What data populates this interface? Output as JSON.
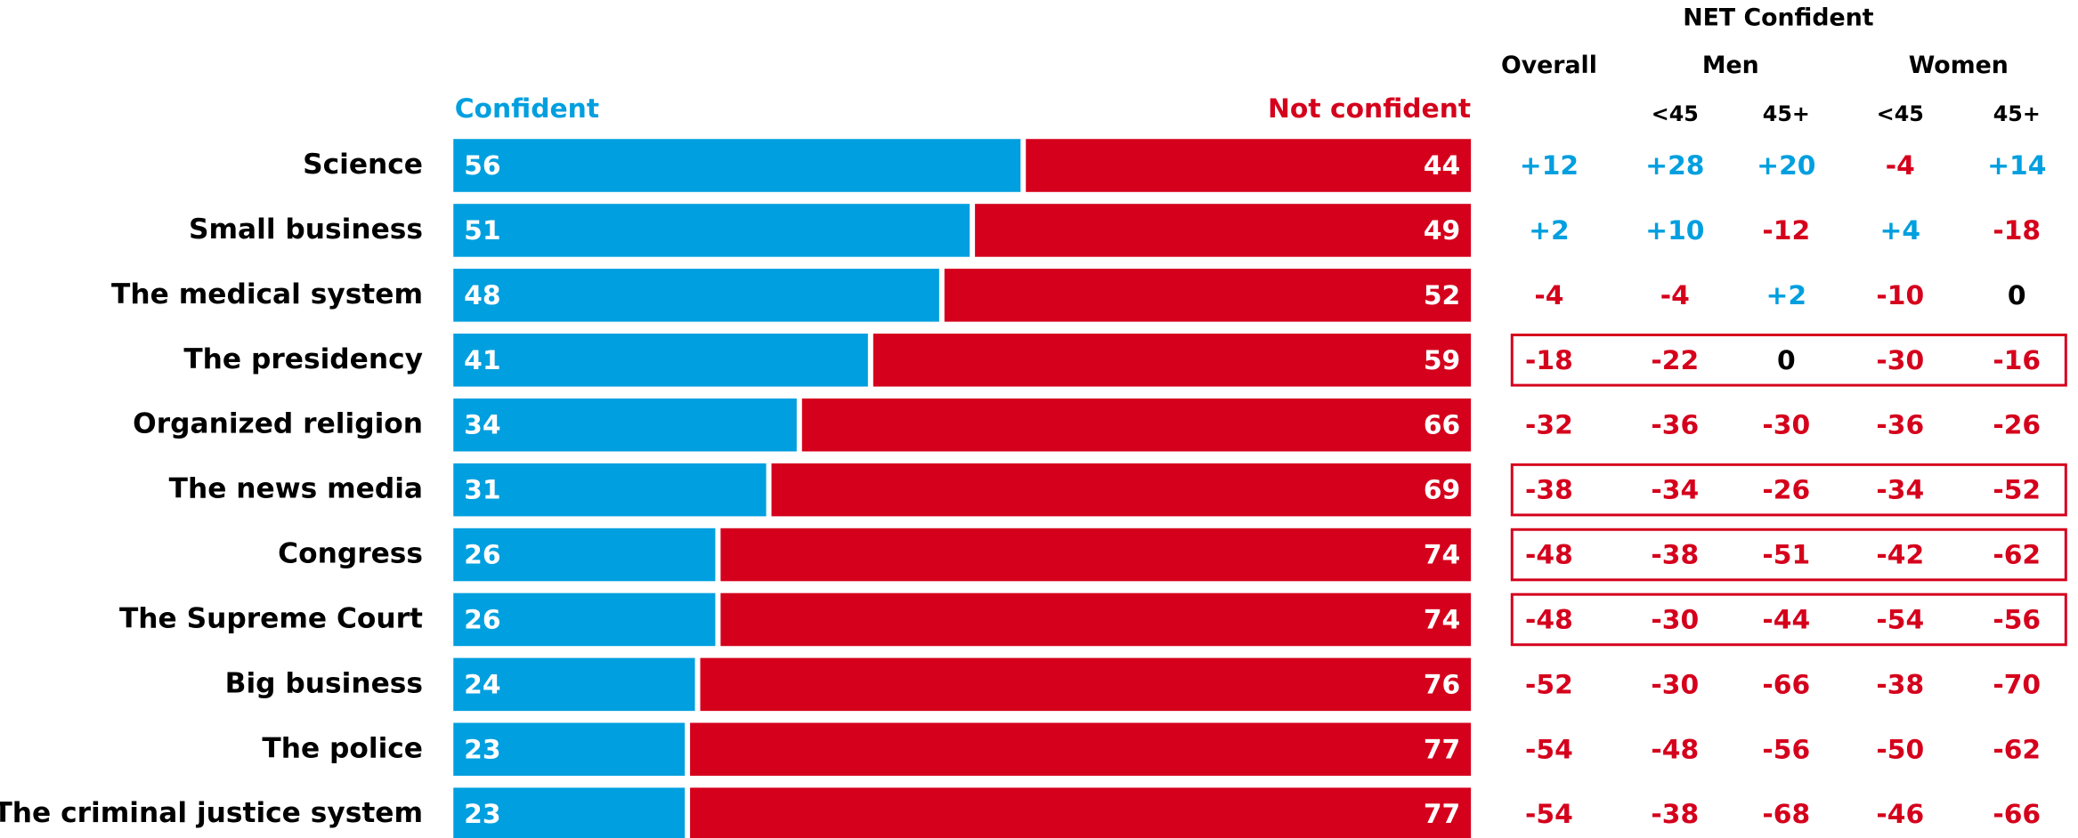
{
  "chart_data": {
    "type": "stacked-bar",
    "categories": [
      "Science",
      "Small business",
      "The medical system",
      "The presidency",
      "Organized religion",
      "The news media",
      "Congress",
      "The Supreme Court",
      "Big business",
      "The police",
      "The criminal justice system"
    ],
    "series": [
      {
        "name": "Confident",
        "color": "#009fdf",
        "values": [
          56,
          51,
          48,
          41,
          34,
          31,
          26,
          26,
          24,
          23,
          23
        ]
      },
      {
        "name": "Not confident",
        "color": "#d5001c",
        "values": [
          44,
          49,
          52,
          59,
          66,
          69,
          74,
          74,
          76,
          77,
          77
        ]
      }
    ],
    "xlim": [
      0,
      100
    ],
    "net": {
      "title": "NET Confident",
      "groups": [
        "Overall",
        "Men",
        "Women"
      ],
      "subcolumns": [
        "<45",
        "45+",
        "<45",
        "45+"
      ],
      "positive_color": "#009fdf",
      "negative_color": "#d5001c",
      "zero_color": "#000000",
      "highlight_rows": [
        3,
        5,
        6,
        7
      ],
      "values": [
        [
          12,
          28,
          20,
          -4,
          14
        ],
        [
          2,
          10,
          -12,
          4,
          -18
        ],
        [
          -4,
          -4,
          2,
          -10,
          0
        ],
        [
          -18,
          -22,
          0,
          -30,
          -16
        ],
        [
          -32,
          -36,
          -30,
          -36,
          -26
        ],
        [
          -38,
          -34,
          -26,
          -34,
          -52
        ],
        [
          -48,
          -38,
          -51,
          -42,
          -62
        ],
        [
          -48,
          -30,
          -44,
          -54,
          -56
        ],
        [
          -52,
          -30,
          -66,
          -38,
          -70
        ],
        [
          -54,
          -48,
          -56,
          -50,
          -62
        ],
        [
          -54,
          -38,
          -68,
          -46,
          -66
        ]
      ],
      "value_labels": [
        [
          "+12",
          "+28",
          "+20",
          "-4",
          "+14"
        ],
        [
          "+2",
          "+10",
          "-12",
          "+4",
          "-18"
        ],
        [
          "-4",
          "-4",
          "+2",
          "-10",
          "0"
        ],
        [
          "-18",
          "-22",
          "0",
          "-30",
          "-16"
        ],
        [
          "-32",
          "-36",
          "-30",
          "-36",
          "-26"
        ],
        [
          "-38",
          "-34",
          "-26",
          "-34",
          "-52"
        ],
        [
          "-48",
          "-38",
          "-51",
          "-42",
          "-62"
        ],
        [
          "-48",
          "-30",
          "-44",
          "-54",
          "-56"
        ],
        [
          "-52",
          "-30",
          "-66",
          "-38",
          "-70"
        ],
        [
          "-54",
          "-48",
          "-56",
          "-50",
          "-62"
        ],
        [
          "-54",
          "-38",
          "-68",
          "-46",
          "-66"
        ]
      ]
    }
  }
}
